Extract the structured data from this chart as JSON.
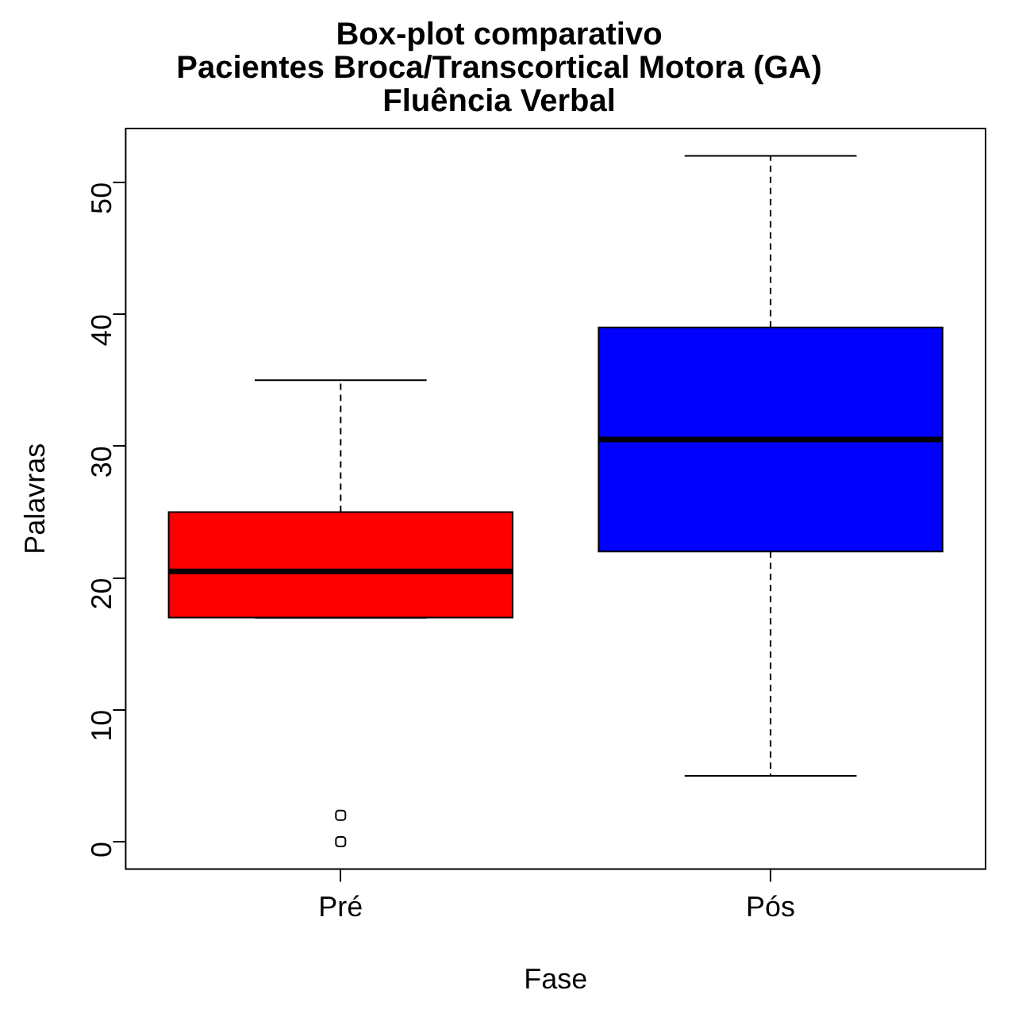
{
  "chart_data": {
    "type": "box",
    "title": "Box-plot comparativo\nPacientes Broca/Transcortical Motora (GA)\nFluência Verbal",
    "xlabel": "Fase",
    "ylabel": "Palavras",
    "categories": [
      "Pré",
      "Pós"
    ],
    "colors": [
      "#ff0000",
      "#0000ff"
    ],
    "boxes": [
      {
        "low": 17,
        "q1": 17,
        "median": 20.5,
        "q3": 25,
        "high": 35,
        "outliers": [
          0,
          2
        ]
      },
      {
        "low": 5,
        "q1": 22,
        "median": 30.5,
        "q3": 39,
        "high": 52
      }
    ],
    "ylim": [
      -2.08,
      54.08
    ],
    "yticks": [
      0,
      10,
      20,
      30,
      40,
      50
    ],
    "grid": false,
    "legend": false
  }
}
